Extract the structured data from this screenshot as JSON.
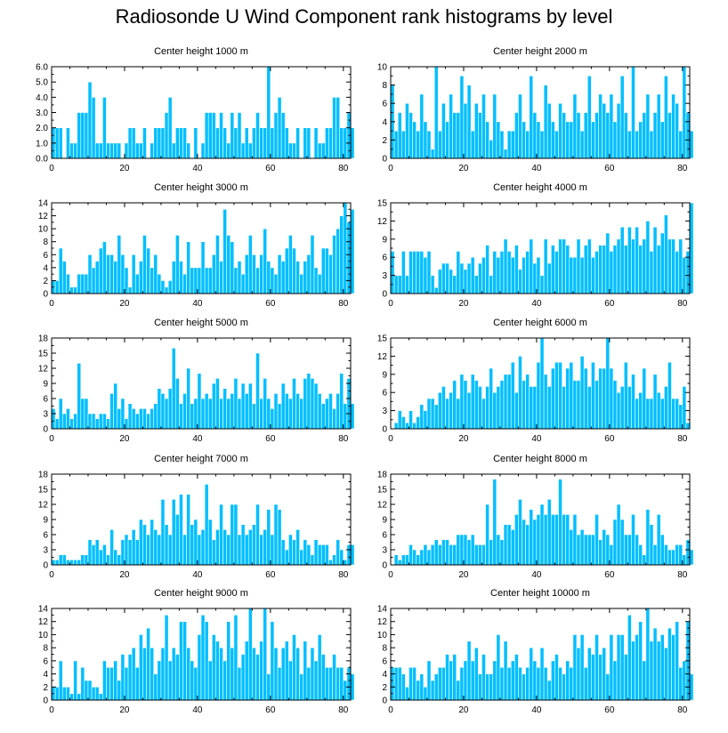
{
  "figure_title": "Radiosonde U Wind Component rank histograms by level",
  "colors": {
    "bar": "#00bfff",
    "bar_edge": "#ffffff",
    "axis": "#000000"
  },
  "chart_data": [
    {
      "type": "bar",
      "title": "Center height 1000 m",
      "xlim": [
        0,
        82
      ],
      "xticks": [
        0,
        20,
        40,
        60,
        80
      ],
      "ylim": [
        0,
        6
      ],
      "yticks": [
        0,
        1,
        2,
        3,
        4,
        5,
        6
      ],
      "ytick_labels": [
        "0.0",
        "1.0",
        "2.0",
        "3.0",
        "4.0",
        "5.0",
        "6.0"
      ],
      "values": [
        2,
        2,
        2,
        0,
        2,
        1,
        1,
        3,
        3,
        3,
        5,
        4,
        1,
        1,
        4,
        1,
        1,
        1,
        1,
        0,
        1,
        2,
        2,
        1,
        1,
        2,
        0,
        1,
        2,
        2,
        2,
        3,
        4,
        1,
        2,
        2,
        2,
        1,
        0,
        2,
        0,
        1,
        3,
        3,
        3,
        2,
        3,
        2,
        1,
        3,
        2,
        3,
        1,
        2,
        1,
        2,
        3,
        2,
        2,
        6,
        2,
        3,
        4,
        3,
        2,
        1,
        1,
        2,
        0,
        2,
        2,
        0,
        2,
        1,
        1,
        2,
        2,
        4,
        4,
        2,
        2,
        3,
        2
      ],
      "xlabel": "",
      "ylabel": ""
    },
    {
      "type": "bar",
      "title": "Center height 2000 m",
      "xlim": [
        0,
        82
      ],
      "xticks": [
        0,
        20,
        40,
        60,
        80
      ],
      "ylim": [
        0,
        10
      ],
      "yticks": [
        0,
        2,
        4,
        6,
        8,
        10
      ],
      "ytick_labels": [
        "0",
        "2",
        "4",
        "6",
        "8",
        "10"
      ],
      "values": [
        8,
        3,
        5,
        3,
        6,
        5,
        4,
        3,
        7,
        4,
        3,
        1,
        10,
        3,
        6,
        4,
        7,
        5,
        5,
        9,
        6,
        8,
        3,
        6,
        5,
        7,
        4,
        2,
        7,
        4,
        3,
        1,
        3,
        3,
        5,
        7,
        4,
        3,
        9,
        5,
        4,
        3,
        8,
        6,
        4,
        3,
        6,
        5,
        4,
        4,
        7,
        5,
        3,
        5,
        9,
        4,
        5,
        7,
        6,
        5,
        7,
        4,
        6,
        9,
        5,
        3,
        10,
        3,
        4,
        5,
        7,
        3,
        5,
        7,
        4,
        9,
        5,
        7,
        6,
        3,
        10,
        5,
        3
      ],
      "xlabel": "",
      "ylabel": ""
    },
    {
      "type": "bar",
      "title": "Center height 3000 m",
      "xlim": [
        0,
        82
      ],
      "xticks": [
        0,
        20,
        40,
        60,
        80
      ],
      "ylim": [
        0,
        14
      ],
      "yticks": [
        0,
        2,
        4,
        6,
        8,
        10,
        12,
        14
      ],
      "ytick_labels": [
        "0",
        "2",
        "4",
        "6",
        "8",
        "10",
        "12",
        "14"
      ],
      "values": [
        2,
        2,
        7,
        5,
        3,
        1,
        1,
        3,
        3,
        3,
        6,
        4,
        5,
        7,
        8,
        6,
        6,
        5,
        9,
        6,
        4,
        1,
        6,
        3,
        5,
        9,
        7,
        4,
        6,
        3,
        2,
        1,
        2,
        5,
        9,
        5,
        3,
        8,
        4,
        4,
        4,
        8,
        4,
        4,
        6,
        9,
        5,
        13,
        9,
        8,
        4,
        5,
        3,
        6,
        9,
        6,
        4,
        6,
        10,
        5,
        4,
        3,
        6,
        5,
        7,
        9,
        7,
        5,
        3,
        5,
        6,
        9,
        4,
        3,
        7,
        7,
        6,
        9,
        10,
        12,
        14,
        11,
        13
      ],
      "xlabel": "",
      "ylabel": ""
    },
    {
      "type": "bar",
      "title": "Center height 4000 m",
      "xlim": [
        0,
        82
      ],
      "xticks": [
        0,
        20,
        40,
        60,
        80
      ],
      "ylim": [
        0,
        15
      ],
      "yticks": [
        0,
        3,
        6,
        9,
        12,
        15
      ],
      "ytick_labels": [
        "0",
        "3",
        "6",
        "9",
        "12",
        "15"
      ],
      "values": [
        7,
        3,
        3,
        7,
        3,
        7,
        7,
        7,
        7,
        6,
        7,
        3,
        1,
        4,
        5,
        5,
        4,
        3,
        7,
        5,
        4,
        5,
        6,
        3,
        5,
        6,
        8,
        3,
        7,
        6,
        7,
        9,
        7,
        6,
        8,
        4,
        6,
        7,
        9,
        5,
        6,
        3,
        9,
        5,
        8,
        7,
        9,
        9,
        8,
        6,
        6,
        9,
        6,
        8,
        9,
        6,
        7,
        8,
        8,
        10,
        7,
        8,
        9,
        11,
        8,
        11,
        9,
        11,
        8,
        9,
        12,
        7,
        11,
        8,
        10,
        13,
        9,
        9,
        7,
        9,
        6,
        7,
        15
      ],
      "xlabel": "",
      "ylabel": ""
    },
    {
      "type": "bar",
      "title": "Center height 5000 m",
      "xlim": [
        0,
        82
      ],
      "xticks": [
        0,
        20,
        40,
        60,
        80
      ],
      "ylim": [
        0,
        18
      ],
      "yticks": [
        0,
        3,
        6,
        9,
        12,
        15,
        18
      ],
      "ytick_labels": [
        "0",
        "3",
        "6",
        "9",
        "12",
        "15",
        "18"
      ],
      "values": [
        4,
        2,
        6,
        3,
        4,
        2,
        3,
        13,
        6,
        6,
        3,
        3,
        2,
        3,
        3,
        2,
        7,
        9,
        4,
        6,
        2,
        5,
        4,
        3,
        4,
        4,
        3,
        4,
        5,
        8,
        7,
        6,
        8,
        16,
        10,
        5,
        7,
        12,
        5,
        6,
        11,
        6,
        7,
        6,
        9,
        10,
        6,
        8,
        6,
        7,
        10,
        6,
        9,
        7,
        9,
        5,
        15,
        6,
        10,
        6,
        4,
        7,
        5,
        9,
        7,
        6,
        10,
        7,
        6,
        10,
        11,
        10,
        9,
        7,
        5,
        6,
        7,
        4,
        7,
        11,
        5,
        10,
        5
      ],
      "xlabel": "",
      "ylabel": ""
    },
    {
      "type": "bar",
      "title": "Center height 6000 m",
      "xlim": [
        0,
        82
      ],
      "xticks": [
        0,
        20,
        40,
        60,
        80
      ],
      "ylim": [
        0,
        15
      ],
      "yticks": [
        0,
        3,
        6,
        9,
        12,
        15
      ],
      "ytick_labels": [
        "0",
        "3",
        "6",
        "9",
        "12",
        "15"
      ],
      "values": [
        0,
        1,
        3,
        2,
        1,
        3,
        1,
        2,
        4,
        3,
        5,
        5,
        4,
        6,
        7,
        5,
        6,
        8,
        5,
        9,
        8,
        6,
        9,
        8,
        7,
        5,
        7,
        10,
        6,
        7,
        8,
        9,
        9,
        11,
        6,
        12,
        8,
        9,
        7,
        7,
        11,
        15,
        9,
        7,
        10,
        11,
        11,
        7,
        10,
        11,
        8,
        8,
        12,
        10,
        7,
        11,
        8,
        10,
        10,
        15,
        10,
        8,
        6,
        7,
        11,
        7,
        9,
        5,
        6,
        10,
        5,
        5,
        9,
        6,
        5,
        7,
        11,
        5,
        5,
        4,
        7,
        1,
        0
      ],
      "xlabel": "",
      "ylabel": ""
    },
    {
      "type": "bar",
      "title": "Center height 7000 m",
      "xlim": [
        0,
        82
      ],
      "xticks": [
        0,
        20,
        40,
        60,
        80
      ],
      "ylim": [
        0,
        18
      ],
      "yticks": [
        0,
        3,
        6,
        9,
        12,
        15,
        18
      ],
      "ytick_labels": [
        "0",
        "3",
        "6",
        "9",
        "12",
        "15",
        "18"
      ],
      "values": [
        1,
        1,
        2,
        2,
        1,
        1,
        1,
        1,
        2,
        2,
        5,
        4,
        5,
        3,
        4,
        2,
        7,
        3,
        2,
        5,
        6,
        5,
        7,
        5,
        9,
        8,
        6,
        9,
        7,
        6,
        13,
        8,
        6,
        13,
        10,
        14,
        6,
        14,
        8,
        9,
        6,
        7,
        16,
        9,
        5,
        7,
        12,
        7,
        6,
        12,
        12,
        6,
        8,
        6,
        7,
        8,
        12,
        6,
        7,
        11,
        6,
        12,
        11,
        5,
        3,
        6,
        5,
        7,
        3,
        5,
        4,
        2,
        5,
        4,
        4,
        4,
        1,
        2,
        5,
        3,
        1,
        4,
        4
      ],
      "xlabel": "",
      "ylabel": ""
    },
    {
      "type": "bar",
      "title": "Center height 8000 m",
      "xlim": [
        0,
        82
      ],
      "xticks": [
        0,
        20,
        40,
        60,
        80
      ],
      "ylim": [
        0,
        18
      ],
      "yticks": [
        0,
        3,
        6,
        9,
        12,
        15,
        18
      ],
      "ytick_labels": [
        "0",
        "3",
        "6",
        "9",
        "12",
        "15",
        "18"
      ],
      "values": [
        0,
        2,
        1,
        2,
        2,
        4,
        3,
        2,
        3,
        4,
        3,
        4,
        5,
        4,
        5,
        5,
        4,
        4,
        6,
        6,
        6,
        5,
        6,
        4,
        4,
        4,
        12,
        5,
        17,
        6,
        5,
        8,
        8,
        7,
        10,
        13,
        9,
        8,
        11,
        9,
        10,
        12,
        10,
        13,
        10,
        10,
        17,
        10,
        10,
        7,
        10,
        6,
        7,
        6,
        6,
        6,
        10,
        5,
        7,
        6,
        4,
        9,
        12,
        9,
        6,
        6,
        10,
        6,
        4,
        2,
        11,
        8,
        4,
        10,
        6,
        4,
        3,
        3,
        4,
        4,
        2,
        5,
        3
      ],
      "xlabel": "",
      "ylabel": ""
    },
    {
      "type": "bar",
      "title": "Center height 9000 m",
      "xlim": [
        0,
        82
      ],
      "xticks": [
        0,
        20,
        40,
        60,
        80
      ],
      "ylim": [
        0,
        14
      ],
      "yticks": [
        0,
        2,
        4,
        6,
        8,
        10,
        12,
        14
      ],
      "ytick_labels": [
        "0",
        "2",
        "4",
        "6",
        "8",
        "10",
        "12",
        "14"
      ],
      "values": [
        2,
        2,
        6,
        2,
        2,
        1,
        6,
        1,
        5,
        3,
        3,
        2,
        2,
        1,
        6,
        5,
        5,
        6,
        3,
        7,
        5,
        7,
        8,
        5,
        10,
        8,
        11,
        8,
        4,
        6,
        8,
        13,
        6,
        8,
        7,
        12,
        12,
        8,
        6,
        5,
        10,
        13,
        12,
        6,
        10,
        9,
        8,
        6,
        12,
        8,
        13,
        5,
        7,
        9,
        14,
        8,
        7,
        9,
        14,
        4,
        12,
        8,
        5,
        8,
        9,
        6,
        10,
        8,
        4,
        9,
        5,
        8,
        6,
        10,
        7,
        5,
        5,
        7,
        5,
        5,
        3,
        5,
        4
      ],
      "xlabel": "",
      "ylabel": ""
    },
    {
      "type": "bar",
      "title": "Center height 10000 m",
      "xlim": [
        0,
        82
      ],
      "xticks": [
        0,
        20,
        40,
        60,
        80
      ],
      "ylim": [
        0,
        14
      ],
      "yticks": [
        0,
        2,
        4,
        6,
        8,
        10,
        12,
        14
      ],
      "ytick_labels": [
        "0",
        "2",
        "4",
        "6",
        "8",
        "10",
        "12",
        "14"
      ],
      "values": [
        5,
        5,
        5,
        4,
        2,
        5,
        5,
        3,
        4,
        2,
        6,
        3,
        4,
        5,
        5,
        7,
        6,
        7,
        3,
        5,
        6,
        9,
        6,
        8,
        4,
        7,
        4,
        4,
        6,
        10,
        5,
        9,
        5,
        6,
        7,
        5,
        4,
        5,
        8,
        6,
        5,
        8,
        5,
        3,
        6,
        7,
        5,
        4,
        6,
        5,
        10,
        8,
        10,
        5,
        8,
        7,
        10,
        7,
        8,
        4,
        10,
        6,
        10,
        10,
        7,
        13,
        9,
        10,
        12,
        6,
        14,
        9,
        11,
        9,
        10,
        8,
        11,
        10,
        12,
        5,
        6,
        12,
        4
      ],
      "xlabel": "",
      "ylabel": ""
    }
  ]
}
